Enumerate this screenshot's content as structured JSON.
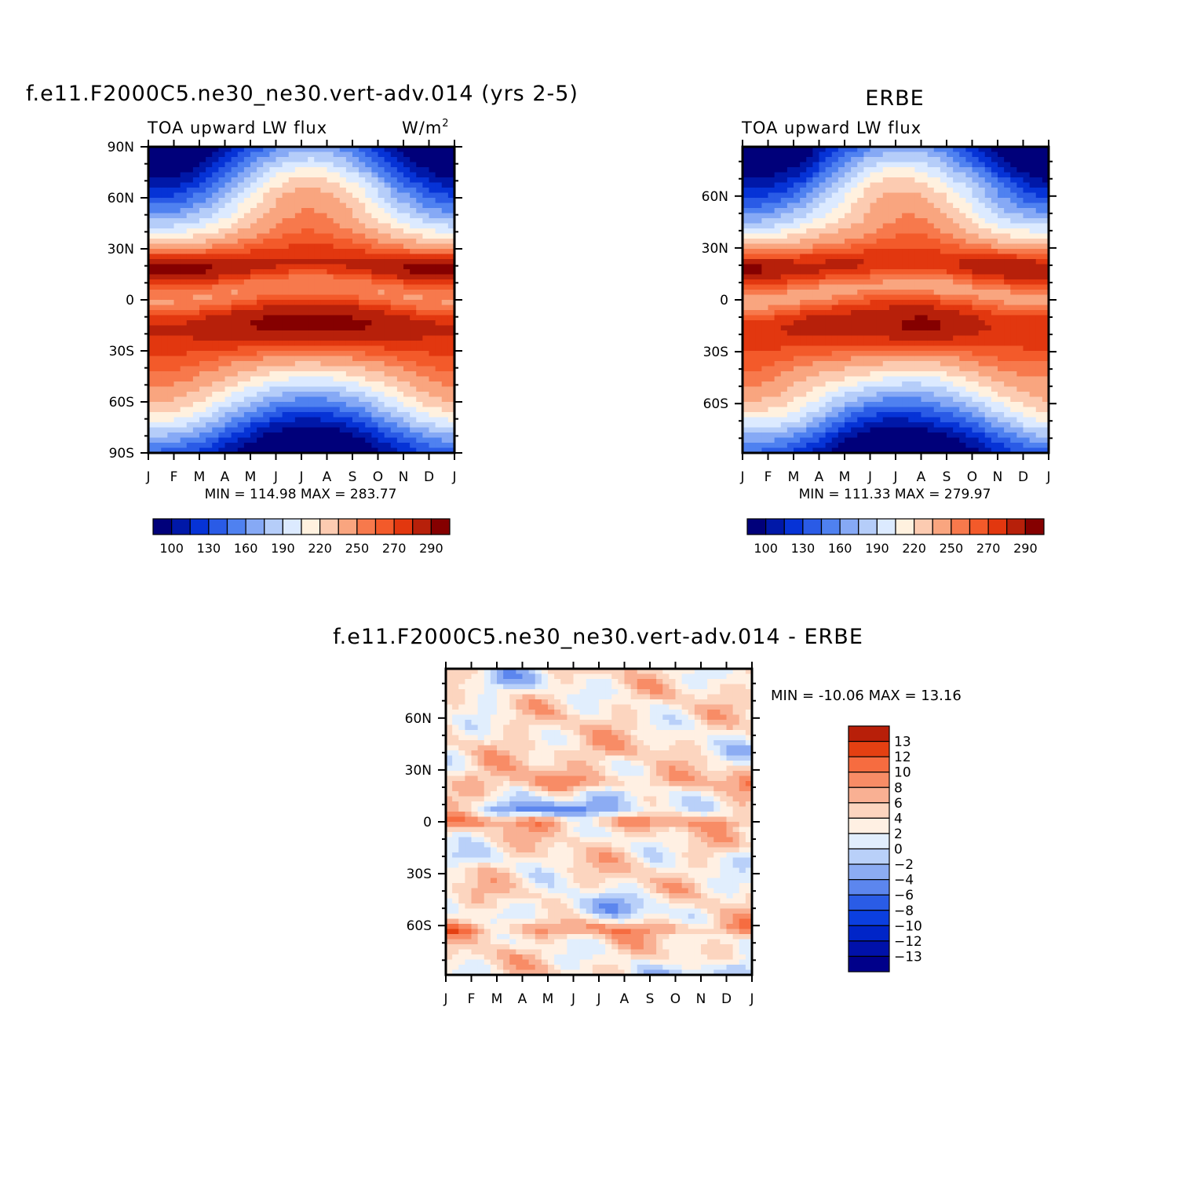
{
  "colors": {
    "abs_palette": [
      "#00007a",
      "#0018a8",
      "#0633d6",
      "#2a5be6",
      "#4f81f0",
      "#86a9f5",
      "#b5cdf9",
      "#dceaff",
      "#fff1df",
      "#fccbb1",
      "#f9a57f",
      "#f7794c",
      "#f35a2a",
      "#e2370f",
      "#b7200a",
      "#850000"
    ],
    "diff_palette": [
      "#00008a",
      "#0011aa",
      "#0025c8",
      "#0b3fe0",
      "#2a5ce6",
      "#5c86ee",
      "#8cacf3",
      "#b9d0f9",
      "#e1eefd",
      "#fff0e3",
      "#fcd5bf",
      "#f9b093",
      "#f88c66",
      "#f66c40",
      "#e44012",
      "#b81f09",
      "#850000"
    ]
  },
  "panels": [
    {
      "id": "model",
      "main_title": "f.e11.F2000C5.ne30_ne30.vert-adv.014 (yrs 2-5)",
      "left_string": "TOA upward LW flux",
      "right_string": "W/m",
      "right_string_sup": "2",
      "min_max": "MIN =  114.98 MAX =  283.77",
      "y_labels": [
        "90N",
        "60N",
        "30N",
        "0",
        "30S",
        "60S",
        "90S"
      ],
      "x_labels": [
        "J",
        "F",
        "M",
        "A",
        "M",
        "J",
        "J",
        "A",
        "S",
        "O",
        "N",
        "D",
        "J"
      ],
      "colorbar_labels": [
        "100",
        "130",
        "160",
        "190",
        "220",
        "250",
        "270",
        "290"
      ]
    },
    {
      "id": "obs",
      "main_title": "ERBE",
      "left_string": "TOA upward LW flux",
      "right_string": "",
      "min_max": "MIN =  111.33 MAX =  279.97",
      "y_labels": [
        "60N",
        "30N",
        "0",
        "30S",
        "60S"
      ],
      "x_labels": [
        "J",
        "F",
        "M",
        "A",
        "M",
        "J",
        "J",
        "A",
        "S",
        "O",
        "N",
        "D",
        "J"
      ],
      "colorbar_labels": [
        "100",
        "130",
        "160",
        "190",
        "220",
        "250",
        "270",
        "290"
      ]
    },
    {
      "id": "diff",
      "main_title": "f.e11.F2000C5.ne30_ne30.vert-adv.014 - ERBE",
      "min_max": "MIN = -10.06 MAX =   13.16",
      "y_labels": [
        "60N",
        "30N",
        "0",
        "30S",
        "60S"
      ],
      "x_labels": [
        "J",
        "F",
        "M",
        "A",
        "M",
        "J",
        "J",
        "A",
        "S",
        "O",
        "N",
        "D",
        "J"
      ],
      "colorbar_labels": [
        "13",
        "12",
        "10",
        "8",
        "6",
        "4",
        "2",
        "0",
        "-2",
        "-4",
        "-6",
        "-8",
        "-10",
        "-12",
        "-13"
      ]
    }
  ],
  "chart_data": [
    {
      "type": "heatmap",
      "title": "f.e11.F2000C5.ne30_ne30.vert-adv.014 (yrs 2-5)",
      "subtitle": "TOA upward LW flux",
      "units": "W/m2",
      "x": [
        "J",
        "F",
        "M",
        "A",
        "M",
        "J",
        "J",
        "A",
        "S",
        "O",
        "N",
        "D",
        "J"
      ],
      "y": [
        "90N",
        "60N",
        "30N",
        "0",
        "30S",
        "60S",
        "90S"
      ],
      "xlim": [
        "J",
        "J"
      ],
      "ylim": [
        "90S",
        "90N"
      ],
      "levels": [
        100,
        115,
        130,
        145,
        160,
        175,
        190,
        205,
        220,
        235,
        250,
        260,
        270,
        280,
        290
      ],
      "min": 114.98,
      "max": 283.77
    },
    {
      "type": "heatmap",
      "title": "ERBE",
      "subtitle": "TOA upward LW flux",
      "x": [
        "J",
        "F",
        "M",
        "A",
        "M",
        "J",
        "J",
        "A",
        "S",
        "O",
        "N",
        "D",
        "J"
      ],
      "y": [
        "60N",
        "30N",
        "0",
        "30S",
        "60S"
      ],
      "levels": [
        100,
        115,
        130,
        145,
        160,
        175,
        190,
        205,
        220,
        235,
        250,
        260,
        270,
        280,
        290
      ],
      "min": 111.33,
      "max": 279.97
    },
    {
      "type": "heatmap",
      "title": "f.e11.F2000C5.ne30_ne30.vert-adv.014 - ERBE",
      "x": [
        "J",
        "F",
        "M",
        "A",
        "M",
        "J",
        "J",
        "A",
        "S",
        "O",
        "N",
        "D",
        "J"
      ],
      "y": [
        "60N",
        "30N",
        "0",
        "30S",
        "60S"
      ],
      "levels": [
        -13,
        -12,
        -10,
        -8,
        -6,
        -4,
        -2,
        0,
        2,
        4,
        6,
        8,
        10,
        12,
        13
      ],
      "min": -10.06,
      "max": 13.16
    }
  ]
}
